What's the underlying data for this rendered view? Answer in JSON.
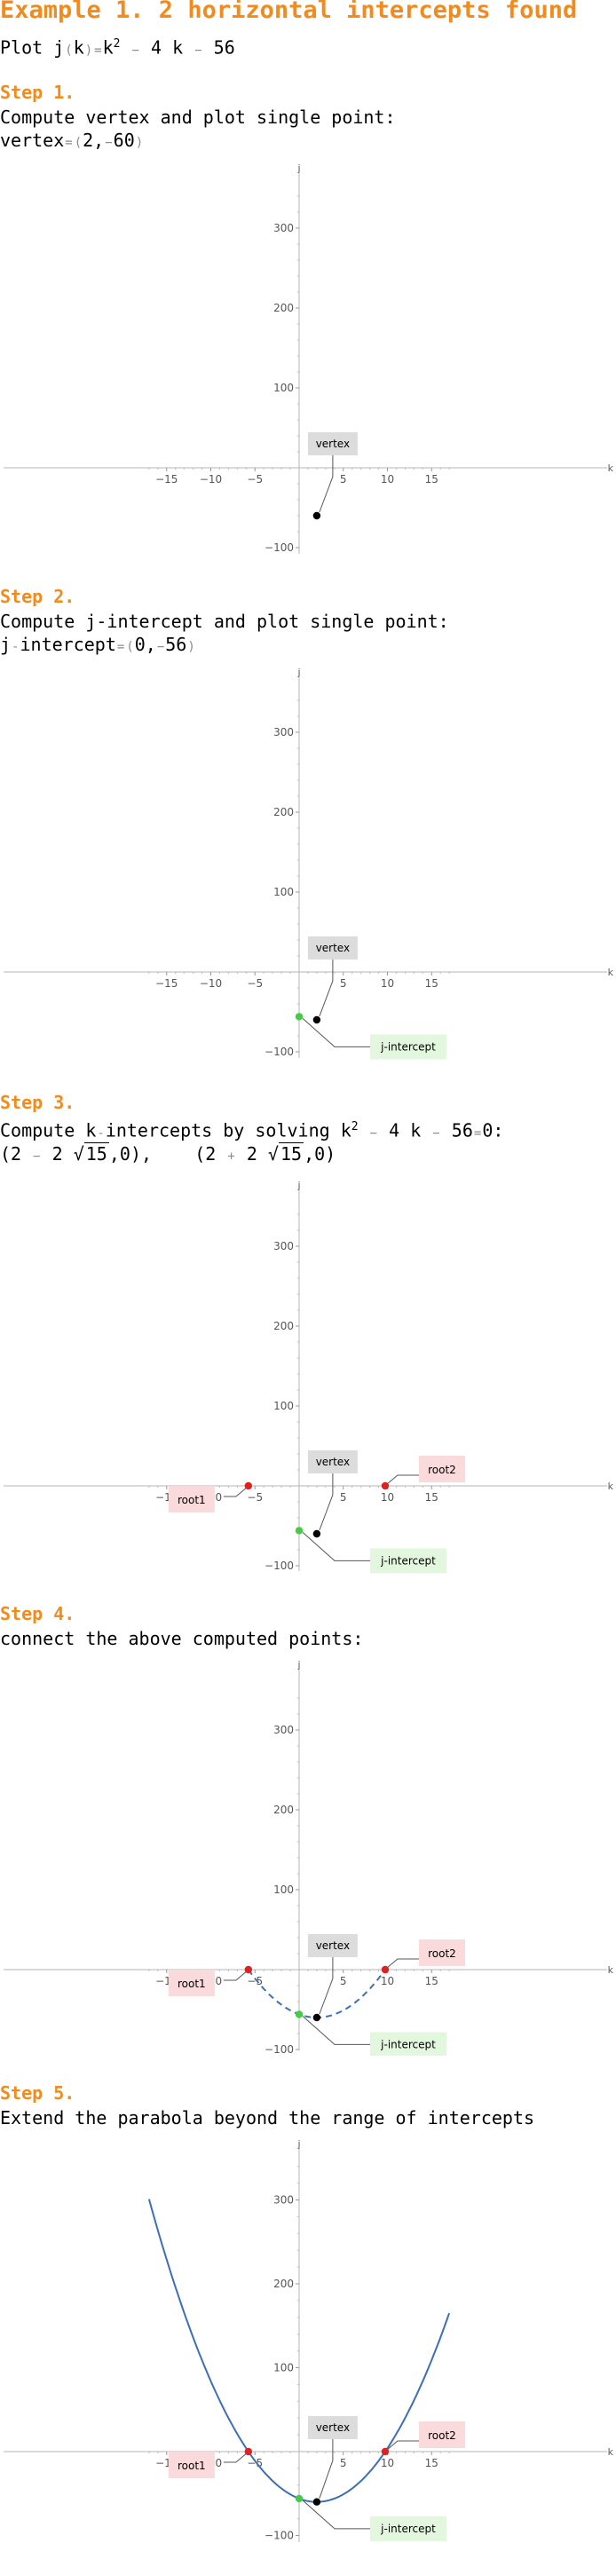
{
  "header": {
    "title": "Example 1. 2 horizontal intercepts found",
    "plot_prefix": "Plot j",
    "plot_paren_open": "(",
    "plot_var": "k",
    "plot_paren_close": ")",
    "plot_eq": "=",
    "plot_k": "k",
    "plot_exp": "2",
    "plot_minus1": "−",
    "plot_term2": "4 k",
    "plot_minus2": "−",
    "plot_term3": "56"
  },
  "steps": [
    {
      "label": "Step 1.",
      "desc": "Compute vertex and plot single point:",
      "result": {
        "name": "vertex",
        "eq": "=",
        "open": "(",
        "x": "2",
        "comma": ",",
        "minus": "−",
        "y": "60",
        "close": ")"
      }
    },
    {
      "label": "Step 2.",
      "desc": "Compute j-intercept and plot single point:",
      "result": {
        "name": "j",
        "dash": "-",
        "name2": "intercept",
        "eq": "=",
        "open": "(",
        "x": "0",
        "comma": ",",
        "minus": "−",
        "y": "56",
        "close": ")"
      }
    },
    {
      "label": "Step 3.",
      "desc_pre": "Compute k",
      "desc_dash": "-",
      "desc_mid": "intercepts by solving k",
      "desc_exp": "2",
      "desc_minus1": "−",
      "desc_t2": "4 k",
      "desc_minus2": "−",
      "desc_t3": "56",
      "desc_eq": "=",
      "desc_end": "0:",
      "roots": {
        "r1_open": "(2",
        "r1_op": "−",
        "r1_coef": "2",
        "r1_rad": "15",
        "r1_close": ",0),",
        "r2_open": "(2",
        "r2_op": "+",
        "r2_coef": "2",
        "r2_rad": "15",
        "r2_close": ",0)"
      }
    },
    {
      "label": "Step 4.",
      "desc": "connect the above computed points:"
    },
    {
      "label": "Step 5.",
      "desc": "Extend the parabola beyond the range of intercepts"
    }
  ],
  "plot": {
    "x_axis_label": "k",
    "y_axis_label": "j",
    "x_ticks": [
      -15,
      -10,
      -5,
      5,
      10,
      15
    ],
    "x_tick_labels": [
      "−15",
      "−10",
      "−5",
      "5",
      "10",
      "15"
    ],
    "y_ticks": [
      -100,
      100,
      200,
      300
    ],
    "y_tick_labels": [
      "−100",
      "100",
      "200",
      "300"
    ],
    "x_range": [
      -17,
      17
    ],
    "y_range": [
      -110,
      360
    ],
    "labels": {
      "vertex": "vertex",
      "j_intercept": "j-intercept",
      "root1": "root1",
      "root2": "root2"
    },
    "points": {
      "vertex": {
        "x": 2,
        "y": -60
      },
      "j_intercept": {
        "x": 0,
        "y": -56
      },
      "root1": {
        "x": -5.746,
        "y": 0
      },
      "root2": {
        "x": 9.746,
        "y": 0
      }
    },
    "colors": {
      "curve": "#3d6fb4",
      "vertex": "#000000",
      "j_intercept": "#44cc44",
      "root": "#dd2222",
      "vertex_label_bg": "#dcdcdc",
      "jint_label_bg": "#e2f7de",
      "root_label_bg": "#fadada"
    }
  },
  "chart_data": [
    {
      "type": "scatter",
      "title": "",
      "xlabel": "k",
      "ylabel": "j",
      "xlim": [
        -17,
        17
      ],
      "ylim": [
        -110,
        360
      ],
      "series": [
        {
          "name": "vertex",
          "x": [
            2
          ],
          "y": [
            -60
          ]
        }
      ]
    },
    {
      "type": "scatter",
      "title": "",
      "xlabel": "k",
      "ylabel": "j",
      "xlim": [
        -17,
        17
      ],
      "ylim": [
        -110,
        360
      ],
      "series": [
        {
          "name": "vertex",
          "x": [
            2
          ],
          "y": [
            -60
          ]
        },
        {
          "name": "j-intercept",
          "x": [
            0
          ],
          "y": [
            -56
          ]
        }
      ]
    },
    {
      "type": "scatter",
      "title": "",
      "xlabel": "k",
      "ylabel": "j",
      "xlim": [
        -17,
        17
      ],
      "ylim": [
        -110,
        360
      ],
      "series": [
        {
          "name": "vertex",
          "x": [
            2
          ],
          "y": [
            -60
          ]
        },
        {
          "name": "j-intercept",
          "x": [
            0
          ],
          "y": [
            -56
          ]
        },
        {
          "name": "root1",
          "x": [
            -5.746
          ],
          "y": [
            0
          ]
        },
        {
          "name": "root2",
          "x": [
            9.746
          ],
          "y": [
            0
          ]
        }
      ]
    },
    {
      "type": "line",
      "title": "",
      "xlabel": "k",
      "ylabel": "j",
      "xlim": [
        -17,
        17
      ],
      "ylim": [
        -110,
        360
      ],
      "series": [
        {
          "name": "vertex",
          "x": [
            2
          ],
          "y": [
            -60
          ]
        },
        {
          "name": "j-intercept",
          "x": [
            0
          ],
          "y": [
            -56
          ]
        },
        {
          "name": "root1",
          "x": [
            -5.746
          ],
          "y": [
            0
          ]
        },
        {
          "name": "root2",
          "x": [
            9.746
          ],
          "y": [
            0
          ]
        }
      ],
      "curve": {
        "expression": "k^2 - 4k - 56",
        "x_from": -5.746,
        "x_to": 9.746,
        "style": "dashed"
      }
    },
    {
      "type": "line",
      "title": "",
      "xlabel": "k",
      "ylabel": "j",
      "xlim": [
        -17,
        17
      ],
      "ylim": [
        -110,
        360
      ],
      "series": [
        {
          "name": "vertex",
          "x": [
            2
          ],
          "y": [
            -60
          ]
        },
        {
          "name": "j-intercept",
          "x": [
            0
          ],
          "y": [
            -56
          ]
        },
        {
          "name": "root1",
          "x": [
            -5.746
          ],
          "y": [
            0
          ]
        },
        {
          "name": "root2",
          "x": [
            9.746
          ],
          "y": [
            0
          ]
        }
      ],
      "curve": {
        "expression": "k^2 - 4k - 56",
        "x_from": -17,
        "x_to": 17,
        "style": "solid"
      }
    }
  ]
}
